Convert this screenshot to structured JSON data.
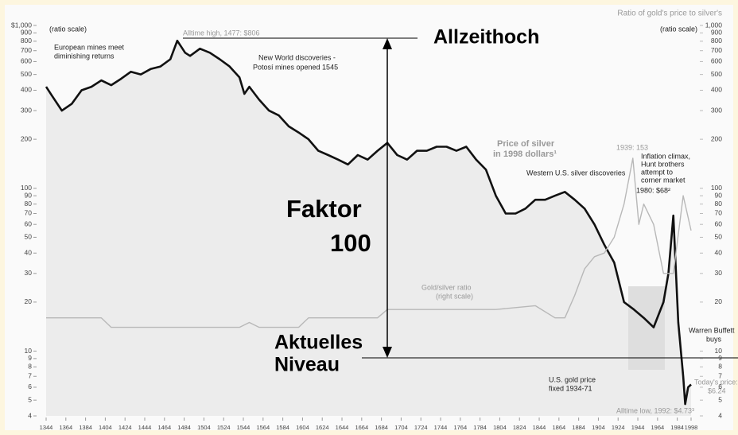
{
  "chart_data": {
    "type": "line",
    "title": "Ratio of gold's price to silver's",
    "log_scale": true,
    "xlim": [
      1344,
      1998
    ],
    "xticks": [
      1344,
      1364,
      1384,
      1404,
      1424,
      1444,
      1464,
      1484,
      1504,
      1524,
      1544,
      1564,
      1584,
      1604,
      1624,
      1644,
      1664,
      1684,
      1704,
      1724,
      1744,
      1764,
      1784,
      1804,
      1824,
      1844,
      1864,
      1884,
      1904,
      1924,
      1944,
      1964,
      1984,
      1998
    ],
    "ylim": [
      4,
      1000
    ],
    "yticks": [
      4,
      5,
      6,
      7,
      8,
      9,
      10,
      20,
      30,
      40,
      50,
      60,
      70,
      80,
      90,
      100,
      200,
      300,
      400,
      500,
      600,
      700,
      800,
      900,
      {
        "value": 1000,
        "label": "$1,000"
      }
    ],
    "y2lim": [
      4,
      1000
    ],
    "y2ticks": [
      4,
      5,
      6,
      7,
      8,
      9,
      10,
      20,
      30,
      40,
      50,
      60,
      70,
      80,
      90,
      100,
      200,
      300,
      400,
      500,
      600,
      700,
      800,
      900,
      {
        "value": 1000,
        "label": "1,000"
      }
    ],
    "series": [
      {
        "name": "Price of silver in 1998 dollars",
        "color": "#111111",
        "x": [
          1344,
          1350,
          1360,
          1370,
          1380,
          1390,
          1400,
          1410,
          1420,
          1430,
          1440,
          1450,
          1460,
          1470,
          1477,
          1485,
          1490,
          1500,
          1510,
          1520,
          1530,
          1540,
          1545,
          1550,
          1560,
          1570,
          1580,
          1590,
          1600,
          1610,
          1620,
          1630,
          1640,
          1650,
          1660,
          1670,
          1680,
          1690,
          1700,
          1710,
          1720,
          1730,
          1740,
          1750,
          1760,
          1770,
          1780,
          1790,
          1800,
          1810,
          1820,
          1830,
          1840,
          1850,
          1860,
          1870,
          1880,
          1890,
          1900,
          1910,
          1920,
          1930,
          1940,
          1950,
          1960,
          1970,
          1975,
          1980,
          1985,
          1990,
          1992,
          1995,
          1998
        ],
        "values": [
          420,
          370,
          300,
          330,
          400,
          420,
          460,
          430,
          470,
          520,
          500,
          540,
          560,
          620,
          806,
          680,
          650,
          720,
          680,
          620,
          560,
          480,
          380,
          420,
          350,
          300,
          280,
          240,
          220,
          200,
          170,
          160,
          150,
          140,
          160,
          150,
          170,
          190,
          160,
          150,
          170,
          170,
          180,
          180,
          170,
          180,
          150,
          130,
          90,
          70,
          70,
          75,
          85,
          85,
          90,
          95,
          85,
          75,
          60,
          45,
          35,
          20,
          18,
          16,
          14,
          20,
          30,
          68,
          15,
          7,
          4.73,
          6,
          6.24
        ]
      },
      {
        "name": "Gold/silver ratio",
        "color": "#b8b8b8",
        "axis": "y2",
        "x": [
          1344,
          1400,
          1410,
          1540,
          1550,
          1560,
          1600,
          1610,
          1680,
          1690,
          1780,
          1800,
          1840,
          1860,
          1870,
          1880,
          1890,
          1900,
          1910,
          1920,
          1930,
          1939,
          1945,
          1950,
          1960,
          1970,
          1980,
          1990,
          1998
        ],
        "values": [
          16,
          16,
          14,
          14,
          15,
          14,
          14,
          16,
          16,
          18,
          18,
          18,
          19,
          16,
          16,
          22,
          32,
          38,
          40,
          50,
          80,
          153,
          60,
          80,
          60,
          30,
          30,
          90,
          55
        ]
      }
    ],
    "annotations": [
      "(ratio scale)",
      "(ratio scale)",
      "Alltime high, 1477: $806",
      "European mines meet",
      "diminishing returns",
      "New World discoveries -",
      "Potosí mines opened 1545",
      "Price of silver",
      "in 1998 dollars¹",
      "Western U.S. silver discoveries",
      "1939: 153",
      "Inflation climax,",
      "Hunt brothers",
      "attempt to",
      "corner market",
      "1980: $68²",
      "Gold/silver ratio",
      "(right scale)",
      "Warren Buffett",
      "buys",
      "U.S. gold price",
      "fixed 1934-71",
      "Today's price:",
      "$6.24",
      "Alltime low, 1992: $4.73³",
      "Allzeithoch",
      "Faktor",
      "100",
      "Aktuelles",
      "Niveau"
    ]
  }
}
